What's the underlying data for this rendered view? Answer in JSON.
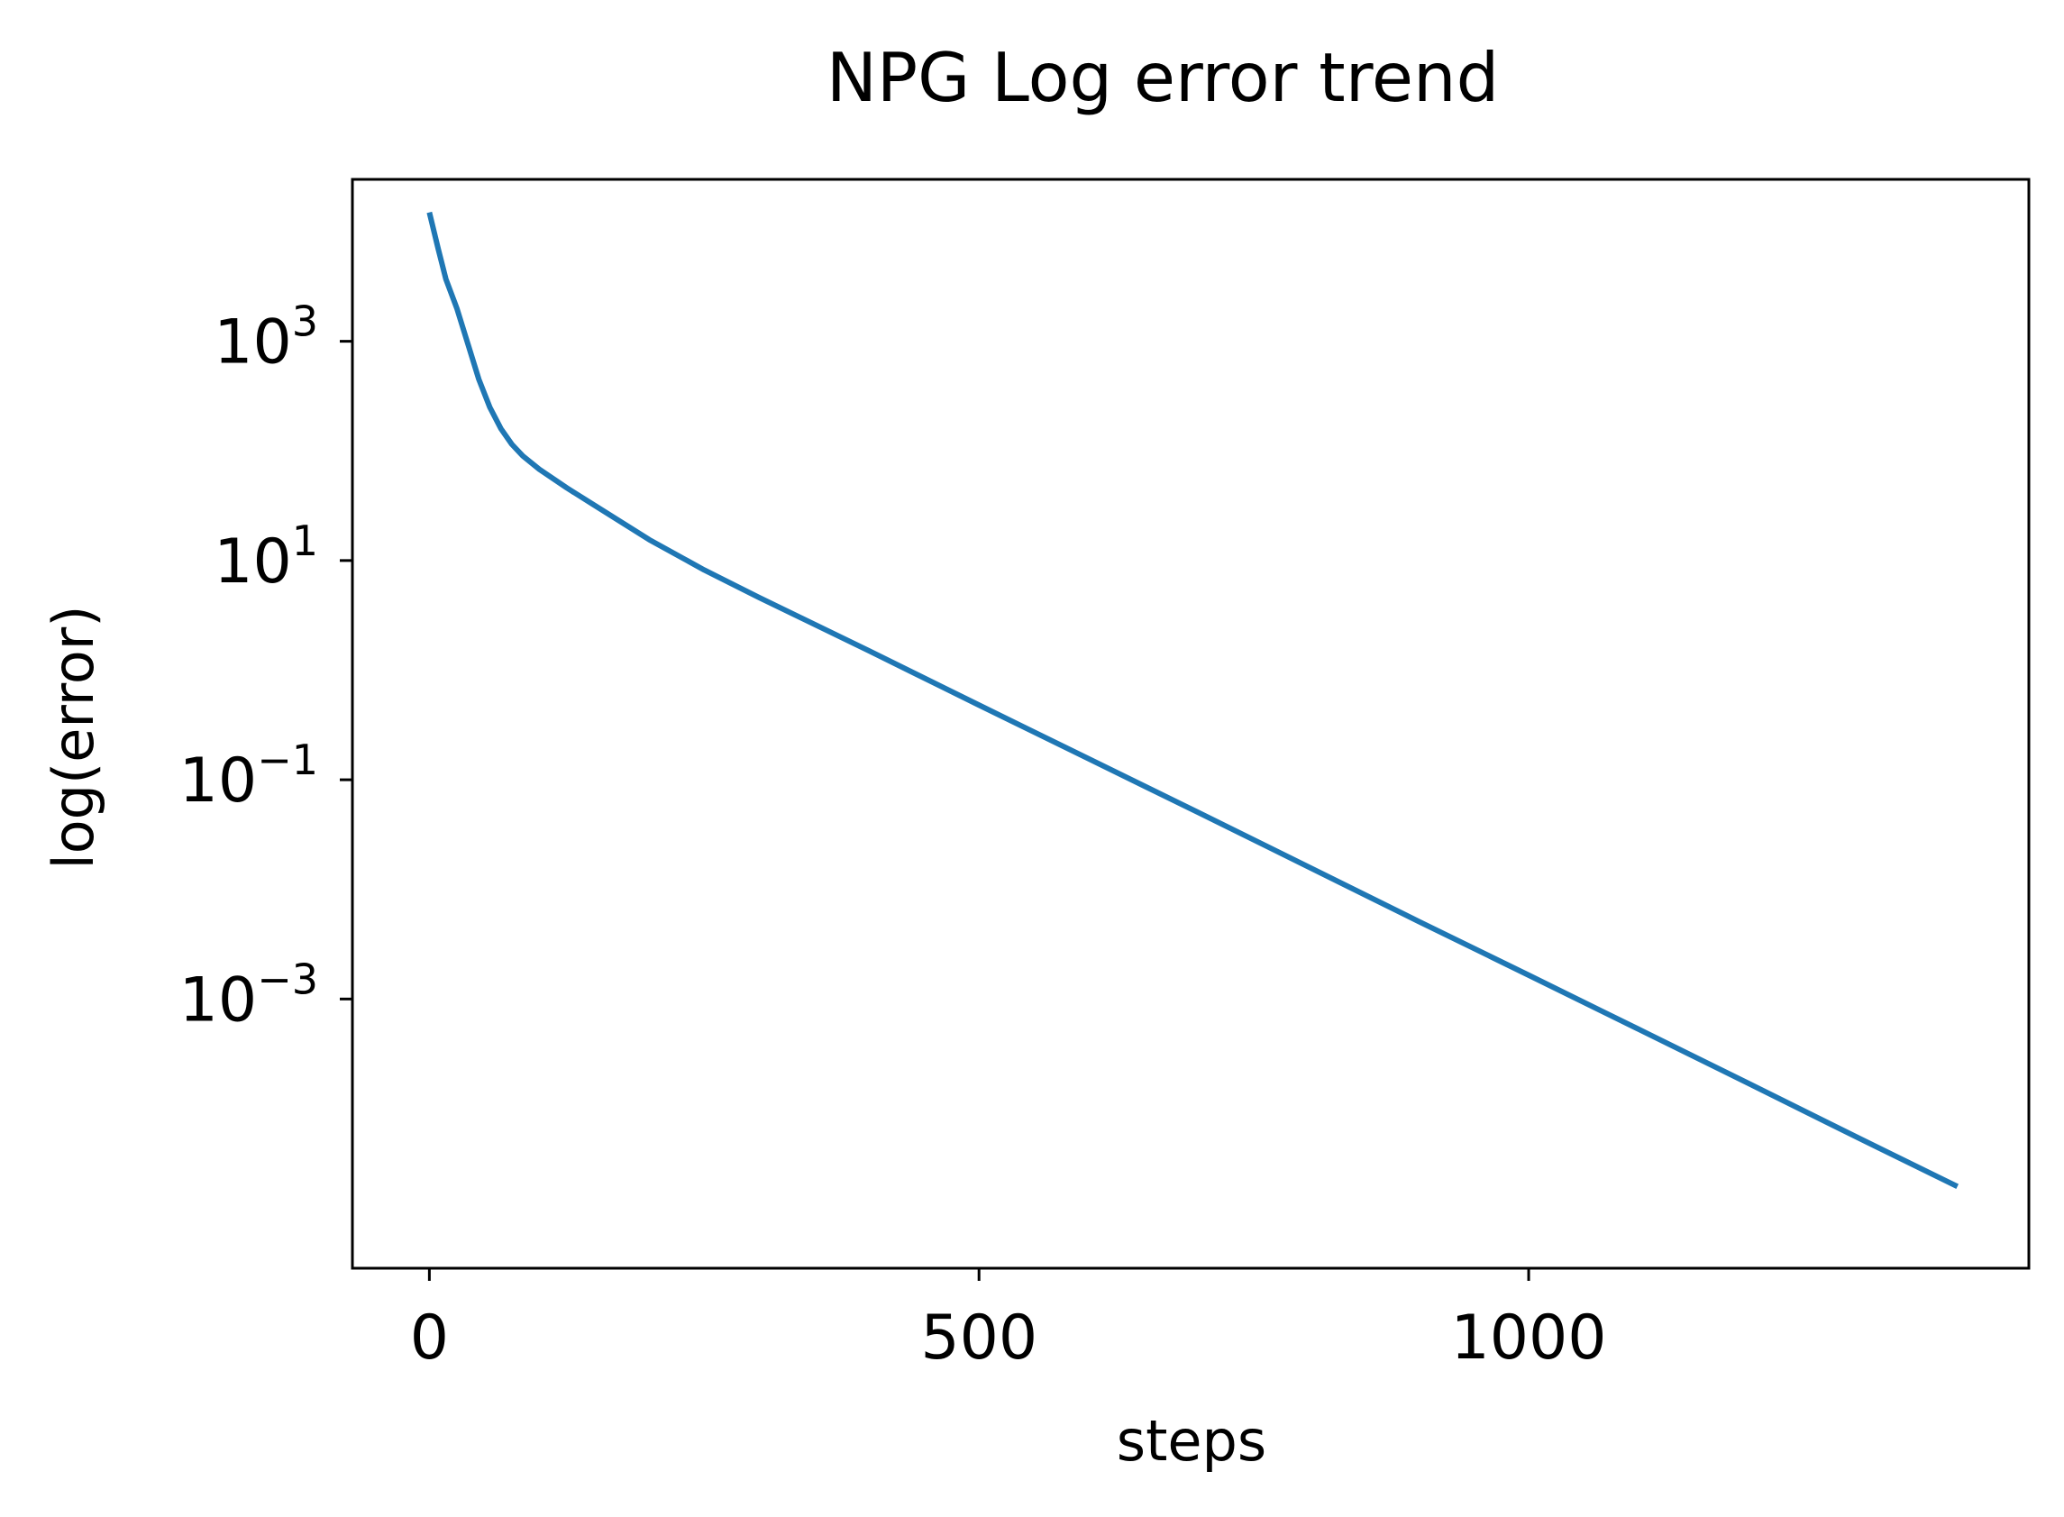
{
  "chart_data": {
    "type": "line",
    "title": "NPG Log error trend",
    "xlabel": "steps",
    "ylabel": "log(error)",
    "yscale": "log",
    "xlim": [
      -70,
      1455
    ],
    "ylim": [
      3.5e-06,
      30000
    ],
    "grid": false,
    "xticks": [
      {
        "value": 0,
        "label": "0"
      },
      {
        "value": 500,
        "label": "500"
      },
      {
        "value": 1000,
        "label": "1000"
      }
    ],
    "yticks": [
      {
        "value": 1000,
        "base": "10",
        "exp": "3"
      },
      {
        "value": 10,
        "base": "10",
        "exp": "1"
      },
      {
        "value": 0.1,
        "base": "10",
        "exp": "−1"
      },
      {
        "value": 0.001,
        "base": "10",
        "exp": "−3"
      }
    ],
    "series": [
      {
        "color": "#1f77b4",
        "x": [
          0,
          8,
          15,
          25,
          35,
          45,
          55,
          65,
          75,
          85,
          100,
          125,
          150,
          200,
          250,
          300,
          400,
          500,
          600,
          700,
          800,
          900,
          1000,
          1100,
          1200,
          1300,
          1390
        ],
        "y": [
          15000,
          7000,
          3700,
          2000,
          950,
          450,
          250,
          160,
          115,
          90,
          68,
          46,
          32,
          15.5,
          8.2,
          4.6,
          1.5,
          0.48,
          0.155,
          0.05,
          0.016,
          0.0051,
          0.00165,
          0.00053,
          0.00017,
          5.4e-05,
          1.95e-05
        ]
      }
    ]
  }
}
